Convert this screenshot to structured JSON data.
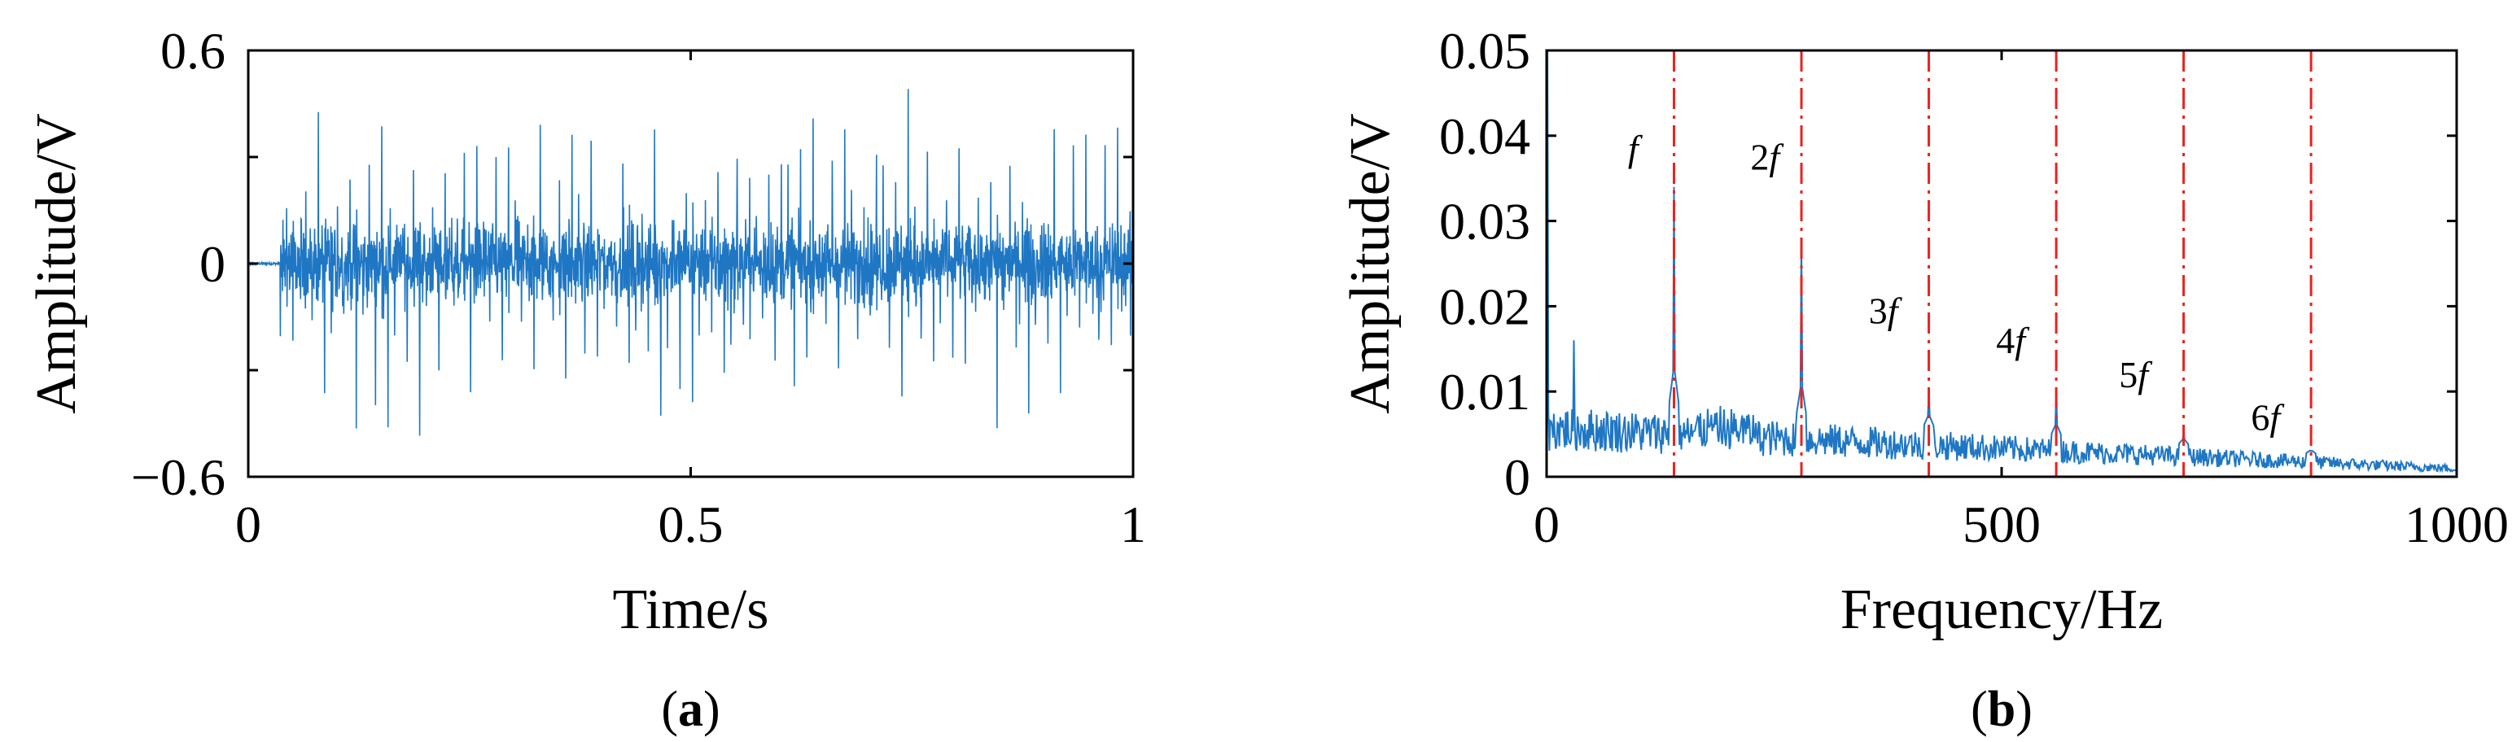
{
  "chart_data": [
    {
      "type": "line",
      "panel_label_open": "(",
      "panel_label_letter": "a",
      "panel_label_close": ")",
      "xlabel": "Time/s",
      "ylabel": "Amplitude/V",
      "xlim": [
        0,
        1
      ],
      "ylim": [
        -0.6,
        0.6
      ],
      "xticks": [
        0,
        0.5,
        1
      ],
      "xtick_labels": [
        "0",
        "0.5",
        "1"
      ],
      "yticks": [
        -0.6,
        0,
        0.6
      ],
      "ytick_labels": [
        "−0.6",
        "0",
        "0.6"
      ],
      "series_color": "#1f77c4",
      "signal": {
        "onset_time": 0.036,
        "impulse_period": 0.00717,
        "noise_band": 0.12,
        "typical_peak": 0.45,
        "max_peak": 0.57,
        "min_value": -0.6
      }
    },
    {
      "type": "line",
      "panel_label_open": "(",
      "panel_label_letter": "b",
      "panel_label_close": ")",
      "xlabel": "Frequency/Hz",
      "ylabel": "Amplitude/V",
      "xlim": [
        0,
        1000
      ],
      "ylim": [
        0,
        0.05
      ],
      "xticks": [
        0,
        500,
        1000
      ],
      "xtick_labels": [
        "0",
        "500",
        "1000"
      ],
      "yticks": [
        0,
        0.01,
        0.02,
        0.03,
        0.04,
        0.05
      ],
      "ytick_labels": [
        "0",
        "0.01",
        "0.02",
        "0.03",
        "0.04",
        "0.05"
      ],
      "series_color": "#1f77c4",
      "marker_color": "#e8231f",
      "harmonics": [
        {
          "label": "f",
          "freq": 140,
          "peak": 0.034,
          "label_x": 95,
          "label_y": 0.037
        },
        {
          "label": "2f",
          "freq": 280,
          "peak": 0.028,
          "label_x": 240,
          "label_y": 0.036
        },
        {
          "label": "3f",
          "freq": 420,
          "peak": 0.01,
          "label_x": 370,
          "label_y": 0.018
        },
        {
          "label": "4f",
          "freq": 560,
          "peak": 0.01,
          "label_x": 510,
          "label_y": 0.0145
        },
        {
          "label": "5f",
          "freq": 700,
          "peak": 0.005,
          "label_x": 645,
          "label_y": 0.0105
        },
        {
          "label": "6f",
          "freq": 840,
          "peak": 0.003,
          "label_x": 790,
          "label_y": 0.0055
        }
      ],
      "spectrum": {
        "dc_value": 0.05,
        "low_freq_spike": {
          "freq": 30,
          "peak": 0.016
        },
        "noise_start": 0.006,
        "noise_end": 0.001
      }
    }
  ]
}
